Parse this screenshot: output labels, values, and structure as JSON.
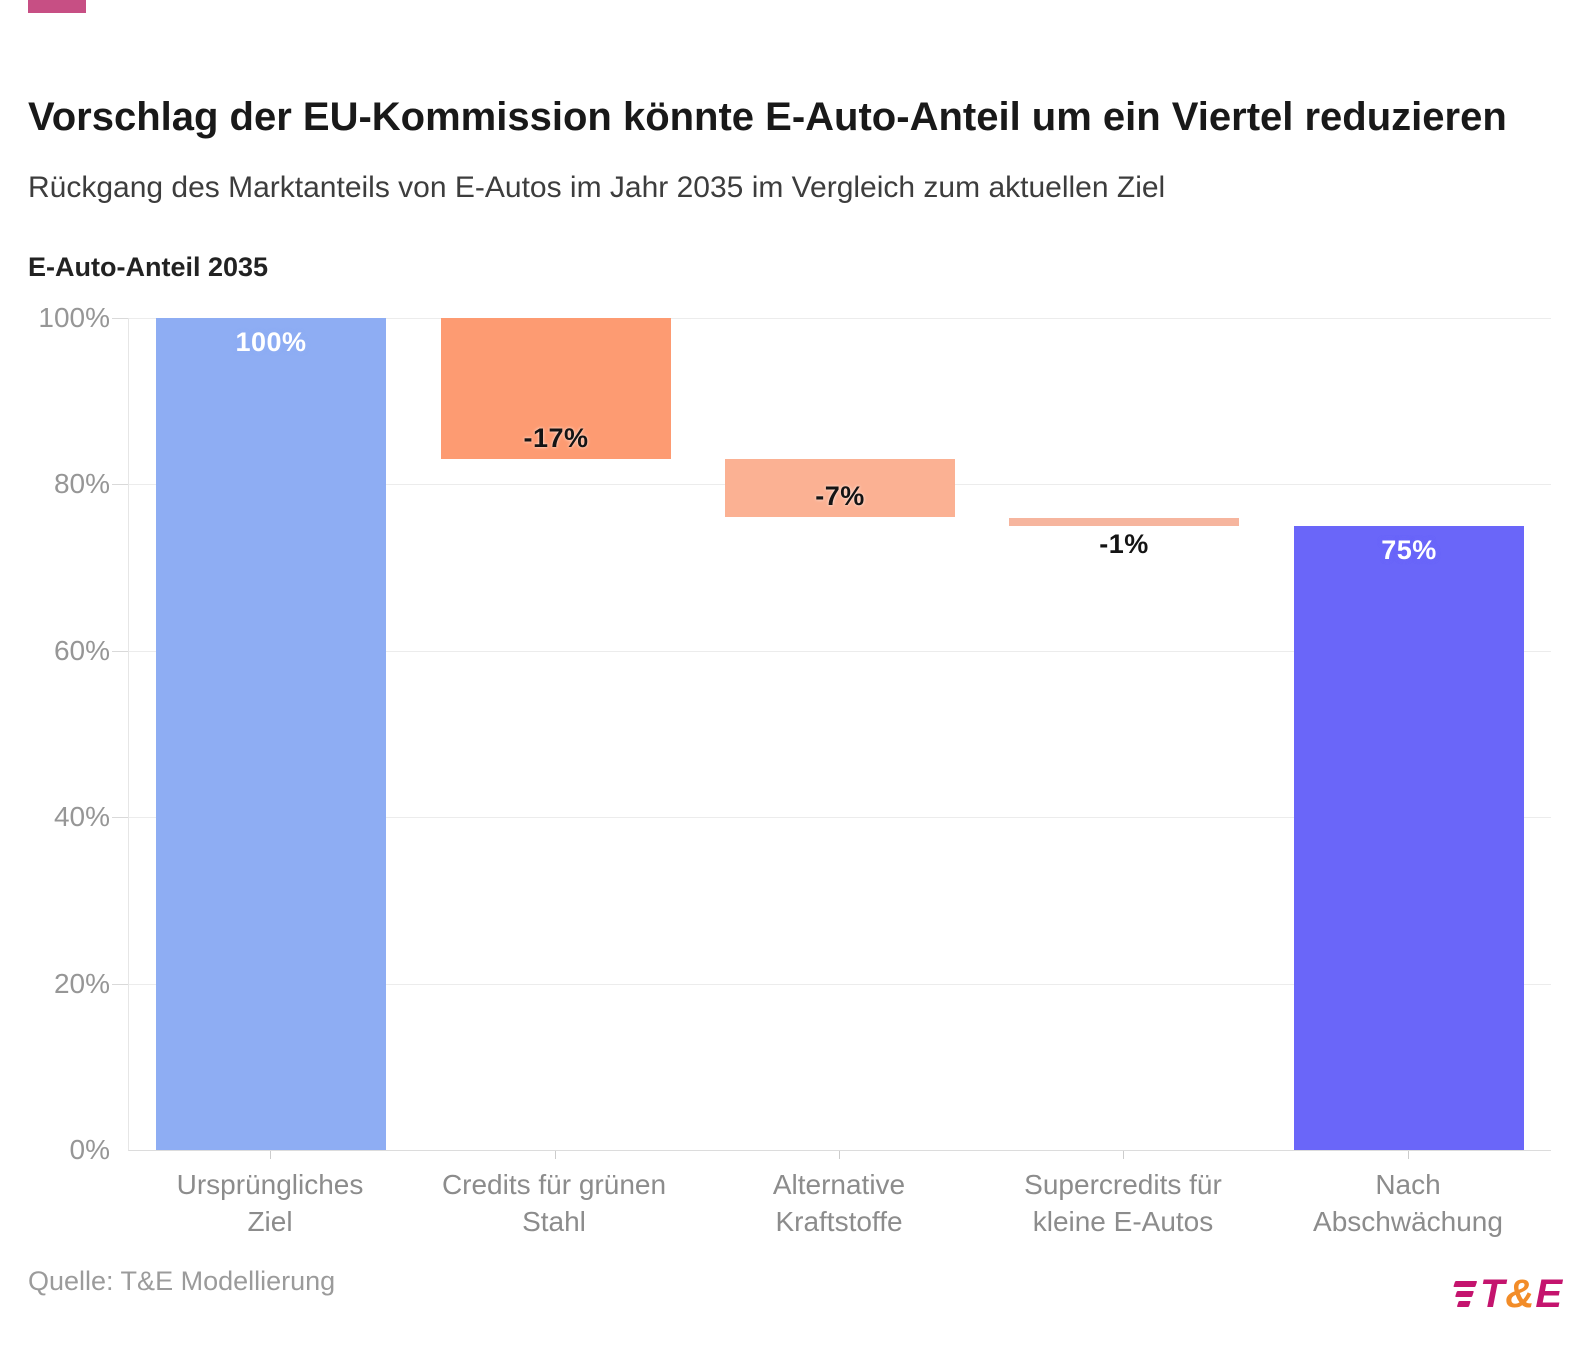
{
  "accent_color": "#C74F84",
  "header": {
    "title": "Vorschlag der EU-Kommission könnte E-Auto-Anteil um ein Viertel reduzieren",
    "subtitle": "Rückgang des Marktanteils von E-Autos im Jahr 2035 im Vergleich zum aktuellen Ziel"
  },
  "chart_data": {
    "type": "bar",
    "subtype": "waterfall",
    "title": "Vorschlag der EU-Kommission könnte E-Auto-Anteil um ein Viertel reduzieren",
    "subtitle": "Rückgang des Marktanteils von E-Autos im Jahr 2035 im Vergleich zum aktuellen Ziel",
    "axis_title": "E-Auto-Anteil 2035",
    "ylim": [
      0,
      100
    ],
    "yticks": [
      0,
      20,
      40,
      60,
      80,
      100
    ],
    "ytick_suffix": "%",
    "grid": true,
    "legend": "none",
    "categories": [
      "Ursprüngliches Ziel",
      "Credits für grünen Stahl",
      "Alternative Kraftstoffe",
      "Supercredits für kleine E-Autos",
      "Nach Abschwächung"
    ],
    "values": [
      100,
      -17,
      -7,
      -1,
      75
    ],
    "bars": [
      {
        "category_lines": [
          "Ursprüngliches",
          "Ziel"
        ],
        "from": 0,
        "to": 100,
        "value": 100,
        "value_label": "100%",
        "color": "#8EADF3",
        "label_style": "light",
        "label_placement": "inside-top"
      },
      {
        "category_lines": [
          "Credits für grünen",
          "Stahl"
        ],
        "from": 83,
        "to": 100,
        "value": -17,
        "value_label": "-17%",
        "color": "#FD9B72",
        "label_style": "dark",
        "label_placement": "inside-bottom"
      },
      {
        "category_lines": [
          "Alternative",
          "Kraftstoffe"
        ],
        "from": 76,
        "to": 83,
        "value": -7,
        "value_label": "-7%",
        "color": "#FBB193",
        "label_style": "dark",
        "label_placement": "inside-bottom"
      },
      {
        "category_lines": [
          "Supercredits für",
          "kleine E-Autos"
        ],
        "from": 75,
        "to": 76,
        "value": -1,
        "value_label": "-1%",
        "color": "#F6B59E",
        "label_style": "dark",
        "label_placement": "below"
      },
      {
        "category_lines": [
          "Nach",
          "Abschwächung"
        ],
        "from": 0,
        "to": 75,
        "value": 75,
        "value_label": "75%",
        "color": "#6A66F9",
        "label_style": "light",
        "label_placement": "inside-top"
      }
    ]
  },
  "footer": {
    "source": "Quelle: T&E Modellierung",
    "logo": {
      "t": "T",
      "amp": "&",
      "e": "E",
      "magenta": "#C4146E",
      "orange": "#F28C28"
    }
  }
}
